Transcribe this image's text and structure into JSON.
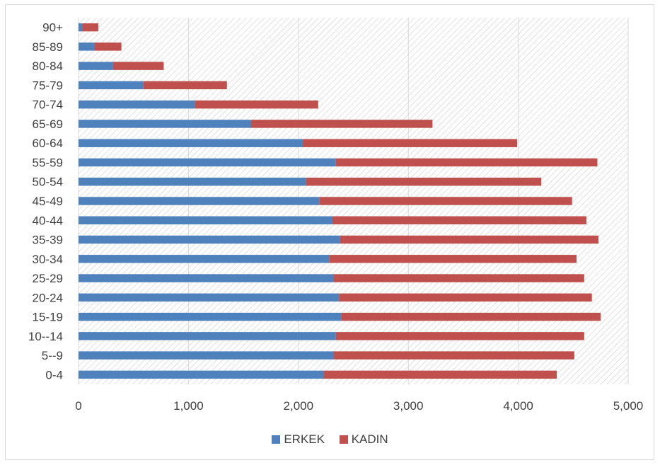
{
  "chart_data": {
    "type": "bar",
    "orientation": "horizontal",
    "stacked": true,
    "categories": [
      "0-4",
      "5--9",
      "10--14",
      "15-19",
      "20-24",
      "25-29",
      "30-34",
      "35-39",
      "40-44",
      "45-49",
      "50-54",
      "55-59",
      "60-64",
      "65-69",
      "70-74",
      "75-79",
      "80-84",
      "85-89",
      "90+"
    ],
    "series": [
      {
        "name": "ERKEK",
        "color": "#4f81bd",
        "values": [
          2230,
          2320,
          2340,
          2390,
          2370,
          2320,
          2280,
          2380,
          2310,
          2190,
          2070,
          2340,
          2040,
          1570,
          1060,
          590,
          315,
          145,
          35
        ]
      },
      {
        "name": "KADIN",
        "color": "#c0504d",
        "values": [
          2120,
          2190,
          2260,
          2360,
          2300,
          2280,
          2250,
          2350,
          2310,
          2300,
          2140,
          2380,
          1950,
          1650,
          1120,
          760,
          460,
          245,
          145
        ]
      }
    ],
    "x_ticks": [
      "0",
      "1,000",
      "2,000",
      "3,000",
      "4,000",
      "5,000"
    ],
    "xlim": [
      0,
      5000
    ],
    "grid": "vertical",
    "plot_background": "diagonal-hatch",
    "legend_position": "bottom"
  }
}
